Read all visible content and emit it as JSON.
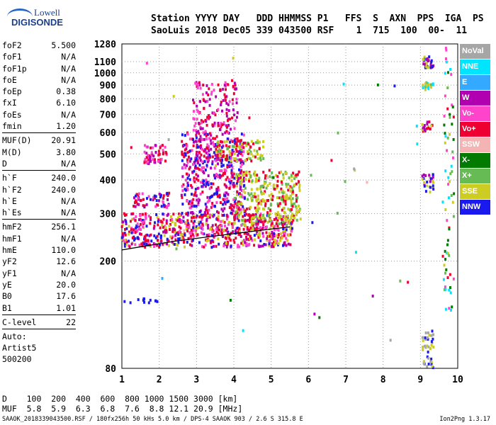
{
  "logo": {
    "line1": "Lowell",
    "line2": "DIGISONDE"
  },
  "header": {
    "line1": "Station YYYY DAY   DDD HHMMSS P1   FFS  S  AXN  PPS  IGA  PS",
    "line2": "SaoLuis 2018 Dec05 339 043500 RSF    1  715  100  00-  11"
  },
  "params": [
    {
      "label": "foF2",
      "value": "5.500"
    },
    {
      "label": "foF1",
      "value": "N/A"
    },
    {
      "label": "foF1p",
      "value": "N/A"
    },
    {
      "label": "foE",
      "value": "N/A"
    },
    {
      "label": "foEp",
      "value": "0.38"
    },
    {
      "label": "fxI",
      "value": "6.10"
    },
    {
      "label": "foEs",
      "value": "N/A"
    },
    {
      "label": "fmin",
      "value": "1.20"
    },
    {
      "sep": true
    },
    {
      "label": "MUF(D)",
      "value": "20.91"
    },
    {
      "label": "M(D)",
      "value": "3.80"
    },
    {
      "label": "D",
      "value": "N/A"
    },
    {
      "sep": true
    },
    {
      "label": "h`F",
      "value": "240.0"
    },
    {
      "label": "h`F2",
      "value": "240.0"
    },
    {
      "label": "h`E",
      "value": "N/A"
    },
    {
      "label": "h`Es",
      "value": "N/A"
    },
    {
      "sep": true
    },
    {
      "label": "hmF2",
      "value": "256.1"
    },
    {
      "label": "hmF1",
      "value": "N/A"
    },
    {
      "label": "hmE",
      "value": "110.0"
    },
    {
      "label": "yF2",
      "value": "12.6"
    },
    {
      "label": "yF1",
      "value": "N/A"
    },
    {
      "label": "yE",
      "value": "20.0"
    },
    {
      "label": "B0",
      "value": "17.6"
    },
    {
      "label": "B1",
      "value": "1.01"
    },
    {
      "sep": true
    },
    {
      "label": "C-level",
      "value": "22"
    },
    {
      "sep": true
    }
  ],
  "auto": {
    "line1": "Auto:",
    "line2": "Artist5",
    "line3": "500200"
  },
  "legend": [
    {
      "label": "NoVal",
      "color": "#a6a6a6"
    },
    {
      "label": "NNE",
      "color": "#00e5ff"
    },
    {
      "label": "E",
      "color": "#33aaff"
    },
    {
      "label": "W",
      "color": "#b000b0"
    },
    {
      "label": "Vo-",
      "color": "#ff44cc"
    },
    {
      "label": "Vo+",
      "color": "#ee0033"
    },
    {
      "label": "SSW",
      "color": "#f4b4b4"
    },
    {
      "label": "X-",
      "color": "#007a00"
    },
    {
      "label": "X+",
      "color": "#66bb55"
    },
    {
      "label": "SSE",
      "color": "#cccc22"
    },
    {
      "label": "NNW",
      "color": "#1a1aee"
    }
  ],
  "dtable": {
    "line1": "D    100  200  400  600  800 1000 1500 3000 [km]",
    "line2": "MUF  5.8  5.9  6.3  6.8  7.6  8.8 12.1 20.9 [MHz]"
  },
  "footer": "SAAOK_2018339043500.RSF / 180fx256h 50 kHs 5.0 km / DPS-4 SAAOK 903 / 2.6 S 315.8 E",
  "version": "Ion2Png 1.3.17",
  "chart_data": {
    "type": "scatter",
    "title": "",
    "xlabel": "",
    "ylabel": "",
    "xlim": [
      1,
      10
    ],
    "ylim": [
      80,
      1280
    ],
    "y_scale": "log",
    "x_ticks": [
      1,
      2,
      3,
      4,
      5,
      6,
      7,
      8,
      9,
      10
    ],
    "y_ticks": [
      80,
      200,
      300,
      400,
      500,
      600,
      700,
      800,
      900,
      1000,
      1100,
      1280
    ],
    "grid": true,
    "series": [
      {
        "name": "trace",
        "color": "#000000",
        "type": "line",
        "x": [
          1.0,
          1.5,
          2.0,
          2.5,
          3.0,
          3.5,
          4.0,
          4.5,
          5.0,
          5.5
        ],
        "y": [
          220,
          226,
          232,
          238,
          243,
          248,
          253,
          258,
          263,
          268
        ]
      }
    ]
  }
}
